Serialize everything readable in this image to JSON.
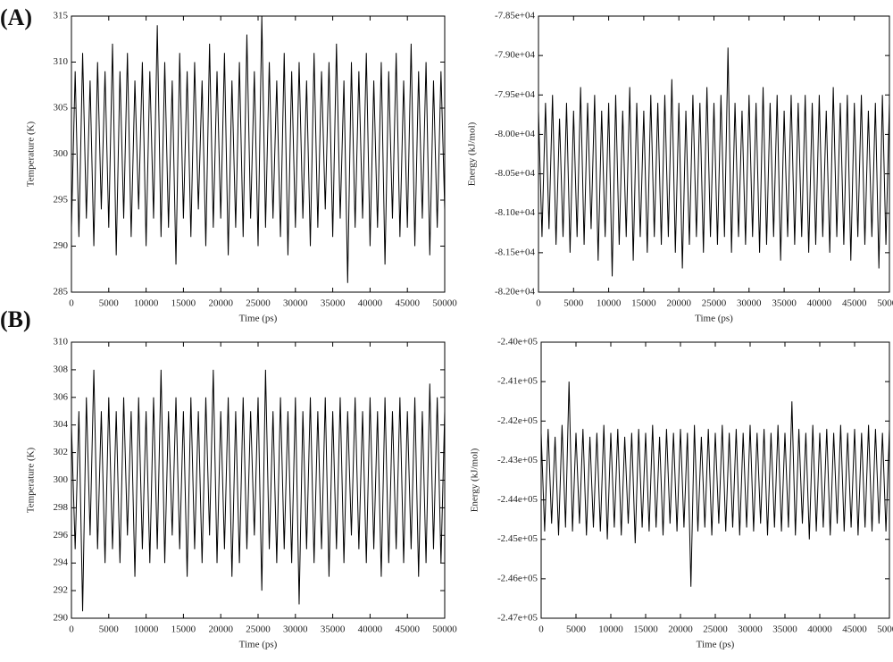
{
  "panel_labels": [
    "(A)",
    "(B)"
  ],
  "chart_data": [
    {
      "type": "line",
      "x_label": "Time (ps)",
      "y_label": "Temperature (K)",
      "x": [
        0,
        500,
        1000,
        1500,
        2000,
        2500,
        3000,
        3500,
        4000,
        4500,
        5000,
        5500,
        6000,
        6500,
        7000,
        7500,
        8000,
        8500,
        9000,
        9500,
        10000,
        10500,
        11000,
        11500,
        12000,
        12500,
        13000,
        13500,
        14000,
        14500,
        15000,
        15500,
        16000,
        16500,
        17000,
        17500,
        18000,
        18500,
        19000,
        19500,
        20000,
        20500,
        21000,
        21500,
        22000,
        22500,
        23000,
        23500,
        24000,
        24500,
        25000,
        25500,
        26000,
        26500,
        27000,
        27500,
        28000,
        28500,
        29000,
        29500,
        30000,
        30500,
        31000,
        31500,
        32000,
        32500,
        33000,
        33500,
        34000,
        34500,
        35000,
        35500,
        36000,
        36500,
        37000,
        37500,
        38000,
        38500,
        39000,
        39500,
        40000,
        40500,
        41000,
        41500,
        42000,
        42500,
        43000,
        43500,
        44000,
        44500,
        45000,
        45500,
        46000,
        46500,
        47000,
        47500,
        48000,
        48500,
        49000,
        49500,
        50000
      ],
      "series": [
        {
          "color": "#000000",
          "values": [
            292,
            309,
            291,
            311,
            293,
            308,
            290,
            310,
            294,
            309,
            292,
            312,
            289,
            309,
            293,
            311,
            291,
            308,
            294,
            310,
            290,
            309,
            293,
            314,
            291,
            310,
            292,
            308,
            288,
            311,
            293,
            309,
            291,
            310,
            294,
            308,
            290,
            312,
            292,
            309,
            293,
            311,
            289,
            308,
            292,
            310,
            291,
            313,
            293,
            309,
            290,
            315,
            292,
            310,
            293,
            308,
            291,
            311,
            289,
            309,
            292,
            310,
            293,
            308,
            290,
            311,
            292,
            309,
            294,
            310,
            291,
            312,
            293,
            308,
            286,
            310,
            292,
            309,
            293,
            311,
            290,
            308,
            292,
            310,
            288,
            309,
            293,
            311,
            291,
            308,
            292,
            312,
            290,
            309,
            293,
            310,
            289,
            308,
            292,
            309,
            294
          ]
        }
      ],
      "xlim": [
        0,
        50000
      ],
      "xticks": [
        0,
        5000,
        10000,
        15000,
        20000,
        25000,
        30000,
        35000,
        40000,
        45000,
        50000
      ],
      "ylim": [
        285,
        315
      ],
      "yticks": [
        285,
        290,
        295,
        300,
        305,
        310,
        315
      ]
    },
    {
      "type": "line",
      "x_label": "Time (ps)",
      "y_label": "Energy (kJ/mol)",
      "x": [
        0,
        500,
        1000,
        1500,
        2000,
        2500,
        3000,
        3500,
        4000,
        4500,
        5000,
        5500,
        6000,
        6500,
        7000,
        7500,
        8000,
        8500,
        9000,
        9500,
        10000,
        10500,
        11000,
        11500,
        12000,
        12500,
        13000,
        13500,
        14000,
        14500,
        15000,
        15500,
        16000,
        16500,
        17000,
        17500,
        18000,
        18500,
        19000,
        19500,
        20000,
        20500,
        21000,
        21500,
        22000,
        22500,
        23000,
        23500,
        24000,
        24500,
        25000,
        25500,
        26000,
        26500,
        27000,
        27500,
        28000,
        28500,
        29000,
        29500,
        30000,
        30500,
        31000,
        31500,
        32000,
        32500,
        33000,
        33500,
        34000,
        34500,
        35000,
        35500,
        36000,
        36500,
        37000,
        37500,
        38000,
        38500,
        39000,
        39500,
        40000,
        40500,
        41000,
        41500,
        42000,
        42500,
        43000,
        43500,
        44000,
        44500,
        45000,
        45500,
        46000,
        46500,
        47000,
        47500,
        48000,
        48500,
        49000,
        49500,
        50000
      ],
      "series": [
        {
          "color": "#000000",
          "values": [
            -79700,
            -81300,
            -79600,
            -81200,
            -79500,
            -81400,
            -79800,
            -81300,
            -79600,
            -81500,
            -79700,
            -81300,
            -79400,
            -81400,
            -79600,
            -81200,
            -79500,
            -81600,
            -79700,
            -81300,
            -79600,
            -81800,
            -79500,
            -81400,
            -79700,
            -81300,
            -79400,
            -81600,
            -79600,
            -81300,
            -79700,
            -81500,
            -79500,
            -81300,
            -79600,
            -81400,
            -79500,
            -81300,
            -79300,
            -81500,
            -79600,
            -81700,
            -79700,
            -81400,
            -79500,
            -81300,
            -79600,
            -81500,
            -79400,
            -81300,
            -79600,
            -81400,
            -79500,
            -81300,
            -78900,
            -81500,
            -79600,
            -81300,
            -79700,
            -81400,
            -79500,
            -81300,
            -79600,
            -81500,
            -79400,
            -81400,
            -79600,
            -81300,
            -79500,
            -81600,
            -79700,
            -81300,
            -79500,
            -81400,
            -79600,
            -81300,
            -79500,
            -81500,
            -79600,
            -81400,
            -79500,
            -81300,
            -79700,
            -81500,
            -79400,
            -81300,
            -79600,
            -81400,
            -79500,
            -81600,
            -79600,
            -81300,
            -79500,
            -81400,
            -79700,
            -81300,
            -79600,
            -81700,
            -79500,
            -81400,
            -79600
          ]
        }
      ],
      "xlim": [
        0,
        50000
      ],
      "xticks": [
        0,
        5000,
        10000,
        15000,
        20000,
        25000,
        30000,
        35000,
        40000,
        45000,
        50000
      ],
      "ylim": [
        -82000,
        -78500
      ],
      "yticks": [
        {
          "value": -82000,
          "label": "-8.20e+04"
        },
        {
          "value": -81500,
          "label": "-8.15e+04"
        },
        {
          "value": -81000,
          "label": "-8.10e+04"
        },
        {
          "value": -80500,
          "label": "-8.05e+04"
        },
        {
          "value": -80000,
          "label": "-8.00e+04"
        },
        {
          "value": -79500,
          "label": "-7.95e+04"
        },
        {
          "value": -79000,
          "label": "-7.90e+04"
        },
        {
          "value": -78500,
          "label": "-7.85e+04"
        }
      ]
    },
    {
      "type": "line",
      "x_label": "Time (ps)",
      "y_label": "Temperature (K)",
      "x": [
        0,
        500,
        1000,
        1500,
        2000,
        2500,
        3000,
        3500,
        4000,
        4500,
        5000,
        5500,
        6000,
        6500,
        7000,
        7500,
        8000,
        8500,
        9000,
        9500,
        10000,
        10500,
        11000,
        11500,
        12000,
        12500,
        13000,
        13500,
        14000,
        14500,
        15000,
        15500,
        16000,
        16500,
        17000,
        17500,
        18000,
        18500,
        19000,
        19500,
        20000,
        20500,
        21000,
        21500,
        22000,
        22500,
        23000,
        23500,
        24000,
        24500,
        25000,
        25500,
        26000,
        26500,
        27000,
        27500,
        28000,
        28500,
        29000,
        29500,
        30000,
        30500,
        31000,
        31500,
        32000,
        32500,
        33000,
        33500,
        34000,
        34500,
        35000,
        35500,
        36000,
        36500,
        37000,
        37500,
        38000,
        38500,
        39000,
        39500,
        40000,
        40500,
        41000,
        41500,
        42000,
        42500,
        43000,
        43500,
        44000,
        44500,
        45000,
        45500,
        46000,
        46500,
        47000,
        47500,
        48000,
        48500,
        49000,
        49500,
        50000
      ],
      "series": [
        {
          "color": "#000000",
          "values": [
            304,
            295,
            305,
            290.5,
            306,
            296,
            308,
            295,
            305,
            294,
            306,
            295,
            305,
            294,
            306,
            296,
            305,
            293,
            306,
            295,
            305,
            294,
            306,
            295,
            308,
            294,
            305,
            296,
            306,
            295,
            305,
            293,
            306,
            295,
            305,
            294,
            306,
            296,
            308,
            294,
            305,
            295,
            306,
            293,
            305,
            294,
            306,
            295,
            305,
            296,
            306,
            292,
            308,
            295,
            305,
            294,
            306,
            295,
            305,
            294,
            306,
            291,
            305,
            295,
            306,
            294,
            305,
            295,
            306,
            293,
            305,
            295,
            306,
            294,
            305,
            296,
            306,
            295,
            305,
            294,
            306,
            295,
            305,
            293,
            306,
            294,
            305,
            295,
            306,
            294,
            305,
            295,
            306,
            293,
            305,
            294,
            307,
            295,
            306,
            294,
            305
          ]
        }
      ],
      "xlim": [
        0,
        50000
      ],
      "xticks": [
        0,
        5000,
        10000,
        15000,
        20000,
        25000,
        30000,
        35000,
        40000,
        45000,
        50000
      ],
      "ylim": [
        290,
        310
      ],
      "yticks": [
        290,
        292,
        294,
        296,
        298,
        300,
        302,
        304,
        306,
        308,
        310
      ]
    },
    {
      "type": "line",
      "x_label": "Time (ps)",
      "y_label": "Energy (kJ/mol)",
      "x": [
        0,
        500,
        1000,
        1500,
        2000,
        2500,
        3000,
        3500,
        4000,
        4500,
        5000,
        5500,
        6000,
        6500,
        7000,
        7500,
        8000,
        8500,
        9000,
        9500,
        10000,
        10500,
        11000,
        11500,
        12000,
        12500,
        13000,
        13500,
        14000,
        14500,
        15000,
        15500,
        16000,
        16500,
        17000,
        17500,
        18000,
        18500,
        19000,
        19500,
        20000,
        20500,
        21000,
        21500,
        22000,
        22500,
        23000,
        23500,
        24000,
        24500,
        25000,
        25500,
        26000,
        26500,
        27000,
        27500,
        28000,
        28500,
        29000,
        29500,
        30000,
        30500,
        31000,
        31500,
        32000,
        32500,
        33000,
        33500,
        34000,
        34500,
        35000,
        35500,
        36000,
        36500,
        37000,
        37500,
        38000,
        38500,
        39000,
        39500,
        40000,
        40500,
        41000,
        41500,
        42000,
        42500,
        43000,
        43500,
        44000,
        44500,
        45000,
        45500,
        46000,
        46500,
        47000,
        47500,
        48000,
        48500,
        49000,
        49500,
        50000
      ],
      "series": [
        {
          "color": "#000000",
          "values": [
            -242300,
            -244800,
            -242200,
            -244600,
            -242400,
            -244900,
            -242100,
            -244700,
            -241000,
            -244800,
            -242300,
            -244600,
            -242200,
            -244900,
            -242400,
            -244700,
            -242300,
            -244800,
            -242100,
            -245000,
            -242300,
            -244700,
            -242200,
            -244900,
            -242400,
            -244600,
            -242300,
            -245100,
            -242200,
            -244700,
            -242300,
            -244800,
            -242100,
            -244700,
            -242400,
            -244900,
            -242200,
            -244600,
            -242300,
            -244800,
            -242200,
            -244700,
            -242300,
            -246200,
            -242100,
            -244800,
            -242400,
            -244700,
            -242200,
            -244900,
            -242300,
            -244600,
            -242100,
            -244800,
            -242300,
            -244700,
            -242200,
            -244900,
            -242300,
            -244700,
            -242100,
            -244800,
            -242300,
            -244600,
            -242200,
            -244900,
            -242300,
            -244700,
            -242100,
            -244800,
            -242300,
            -244700,
            -241500,
            -244900,
            -242200,
            -244600,
            -242300,
            -245000,
            -242100,
            -244800,
            -242300,
            -244700,
            -242200,
            -244900,
            -242300,
            -244600,
            -242100,
            -244800,
            -242300,
            -244700,
            -242200,
            -244900,
            -242300,
            -244700,
            -242100,
            -244800,
            -242200,
            -244600,
            -242300,
            -244800,
            -242200
          ]
        }
      ],
      "xlim": [
        0,
        50000
      ],
      "xticks": [
        0,
        5000,
        10000,
        15000,
        20000,
        25000,
        30000,
        35000,
        40000,
        45000,
        50000
      ],
      "ylim": [
        -247000,
        -240000
      ],
      "yticks": [
        {
          "value": -247000,
          "label": "-2.47e+05"
        },
        {
          "value": -246000,
          "label": "-2.46e+05"
        },
        {
          "value": -245000,
          "label": "-2.45e+05"
        },
        {
          "value": -244000,
          "label": "-2.44e+05"
        },
        {
          "value": -243000,
          "label": "-2.43e+05"
        },
        {
          "value": -242000,
          "label": "-2.42e+05"
        },
        {
          "value": -241000,
          "label": "-2.41e+05"
        },
        {
          "value": -240000,
          "label": "-2.40e+05"
        }
      ]
    }
  ]
}
